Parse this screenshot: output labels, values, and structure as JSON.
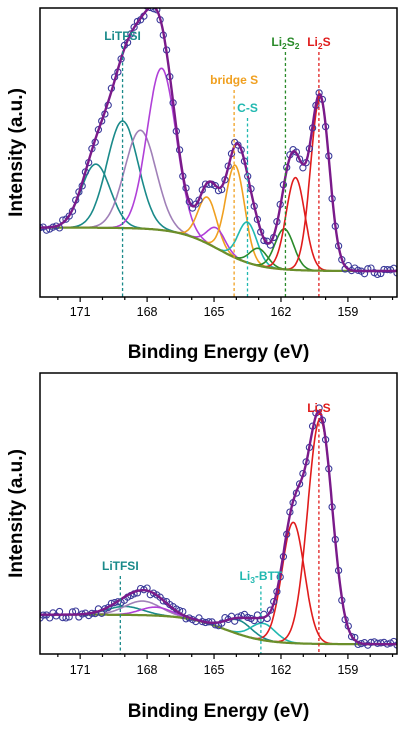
{
  "colors": {
    "data_points": "#3a3a9a",
    "envelope": "#7a1a8a",
    "background": "#6b8f2a",
    "litfsi": "#1a8a8a",
    "purple": "#b040d8",
    "bridge_s": "#f0a020",
    "c_s": "#20b8b0",
    "li2s2": "#2a8a2a",
    "li2s": "#e01c1c"
  },
  "chart_data": [
    {
      "type": "line",
      "xlabel": "Binding Energy (eV)",
      "ylabel": "Intensity (a.u.)",
      "xlim": [
        172.8,
        156.8
      ],
      "ylim": [
        0,
        1
      ],
      "xticks": [
        171,
        168,
        165,
        162,
        159
      ],
      "annotations": [
        {
          "label": "LiTFSI",
          "x": 169.1,
          "color": "#1a8a8a"
        },
        {
          "label": "bridge S",
          "x": 164.1,
          "color": "#f0a020"
        },
        {
          "label": "C-S",
          "x": 163.5,
          "color": "#20b8b0"
        },
        {
          "label_parts": [
            "Li",
            "2",
            "S",
            "2"
          ],
          "x": 161.8,
          "color": "#2a8a2a"
        },
        {
          "label_parts": [
            "Li",
            "2",
            "S"
          ],
          "x": 160.3,
          "color": "#e01c1c"
        }
      ],
      "background": {
        "start": 0.24,
        "end": 0.09,
        "center": 164.8
      },
      "series": [
        {
          "color": "#1a8a8a",
          "center": 170.3,
          "height": 0.22,
          "width": 0.65
        },
        {
          "color": "#1a8a8a",
          "center": 169.1,
          "height": 0.37,
          "width": 0.7
        },
        {
          "color": "#a080b8",
          "center": 168.3,
          "height": 0.34,
          "width": 0.7
        },
        {
          "color": "#b040d8",
          "center": 167.35,
          "height": 0.56,
          "width": 0.65
        },
        {
          "color": "#f0a020",
          "center": 165.3,
          "height": 0.16,
          "width": 0.42
        },
        {
          "color": "#b040d8",
          "center": 164.9,
          "height": 0.07,
          "width": 0.4
        },
        {
          "color": "#f0a020",
          "center": 164.05,
          "height": 0.32,
          "width": 0.42
        },
        {
          "color": "#20b8b0",
          "center": 163.5,
          "height": 0.14,
          "width": 0.42
        },
        {
          "color": "#2a8a2a",
          "center": 163.0,
          "height": 0.06,
          "width": 0.4
        },
        {
          "color": "#2a8a2a",
          "center": 161.85,
          "height": 0.14,
          "width": 0.42
        },
        {
          "color": "#e01c1c",
          "center": 161.35,
          "height": 0.32,
          "width": 0.42
        },
        {
          "color": "#e01c1c",
          "center": 160.25,
          "height": 0.6,
          "width": 0.42
        }
      ]
    },
    {
      "type": "line",
      "xlabel": "Binding Energy (eV)",
      "ylabel": "Intensity (a.u.)",
      "xlim": [
        172.8,
        156.8
      ],
      "ylim": [
        0,
        1
      ],
      "xticks": [
        171,
        168,
        165,
        162,
        159
      ],
      "annotations": [
        {
          "label": "LiTFSI",
          "x": 169.2,
          "color": "#1a8a8a"
        },
        {
          "label_parts": [
            "Li",
            "3",
            "-BTT"
          ],
          "x": 162.9,
          "color": "#20b8b0"
        },
        {
          "label_parts": [
            "Li",
            "2",
            "S"
          ],
          "x": 160.3,
          "color": "#e01c1c"
        }
      ],
      "background": {
        "start": 0.14,
        "end": 0.035,
        "center": 164.5
      },
      "series": [
        {
          "color": "#1a8a8a",
          "center": 169.0,
          "height": 0.03,
          "width": 0.8
        },
        {
          "color": "#a080b8",
          "center": 168.2,
          "height": 0.05,
          "width": 0.8
        },
        {
          "color": "#b040d8",
          "center": 167.6,
          "height": 0.03,
          "width": 0.7
        },
        {
          "color": "#1a8a8a",
          "center": 163.9,
          "height": 0.05,
          "width": 0.6
        },
        {
          "color": "#20b8b0",
          "center": 162.8,
          "height": 0.06,
          "width": 0.55
        },
        {
          "color": "#e01c1c",
          "center": 161.45,
          "height": 0.43,
          "width": 0.5
        },
        {
          "color": "#e01c1c",
          "center": 160.25,
          "height": 0.8,
          "width": 0.55
        }
      ]
    }
  ]
}
